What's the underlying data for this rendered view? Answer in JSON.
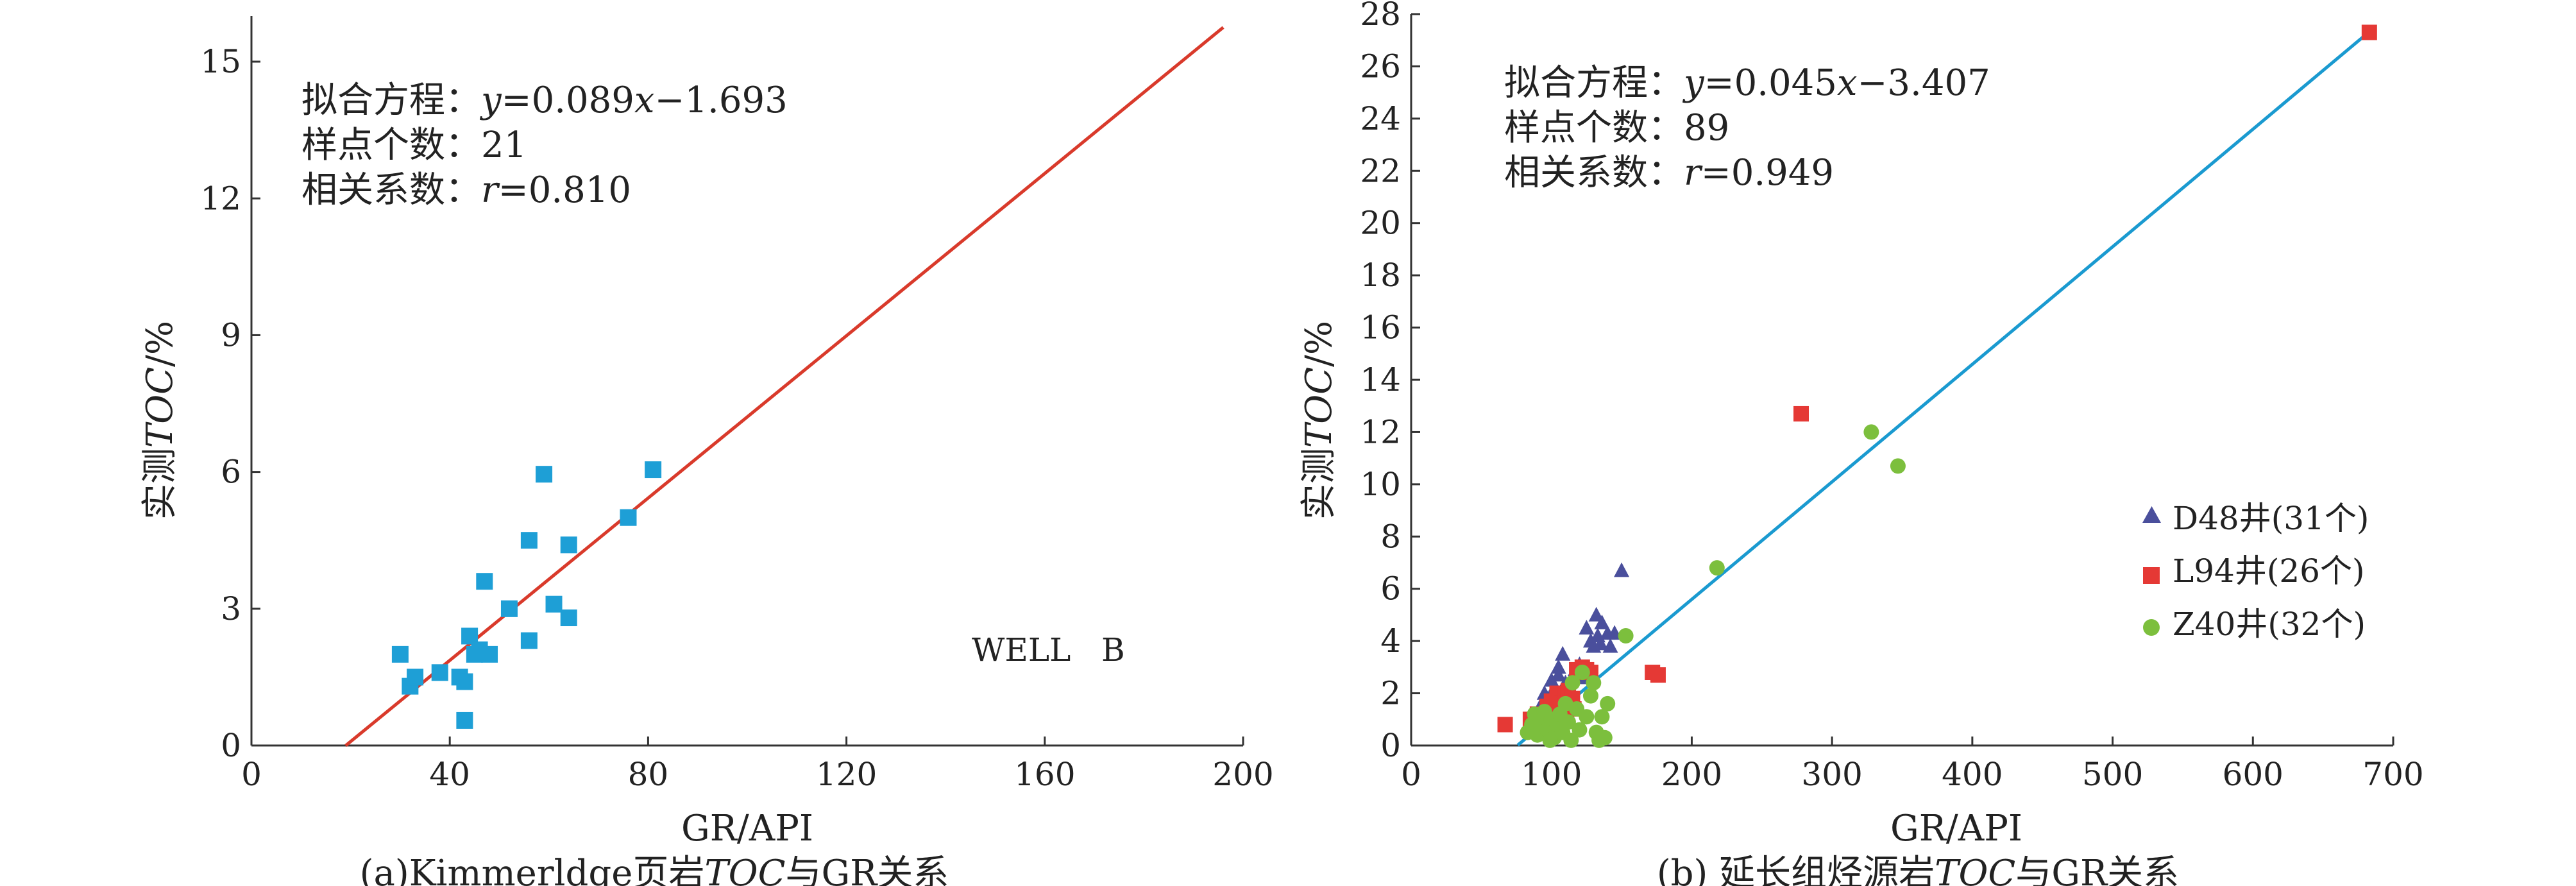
{
  "chart_data": [
    {
      "type": "scatter",
      "caption": {
        "prefix": "(a)Kimmerldge页岩",
        "italic": "TOC",
        "suffix": "与GR关系"
      },
      "xlabel": "GR/API",
      "ylabel": {
        "prefix": "实测",
        "italic": "TOC",
        "suffix": "/%"
      },
      "xlim": [
        0,
        200
      ],
      "ylim": [
        0,
        16
      ],
      "xticks": [
        0,
        40,
        80,
        120,
        160,
        200
      ],
      "yticks": [
        0,
        3,
        6,
        9,
        12,
        15
      ],
      "annotations": {
        "equation": {
          "label": "拟合方程：",
          "var_y": "y",
          "mid": "=0.089",
          "var_x": "x",
          "tail": "−1.693"
        },
        "count": {
          "label": "样点个数：",
          "value": "21"
        },
        "corr": {
          "label": "相关系数：",
          "var_r": "r",
          "value": "=0.810"
        }
      },
      "well_label": "WELL   B",
      "fit": {
        "slope": 0.089,
        "intercept": -1.693,
        "x_range": [
          19,
          196
        ],
        "color": "#d93a2b"
      },
      "series": [
        {
          "marker": "square",
          "color": "#1e9fd6",
          "points": [
            [
              30,
              2.0
            ],
            [
              32,
              1.3
            ],
            [
              33,
              1.5
            ],
            [
              38,
              1.6
            ],
            [
              42,
              1.5
            ],
            [
              43,
              1.4
            ],
            [
              43,
              0.55
            ],
            [
              44,
              2.4
            ],
            [
              45,
              2.0
            ],
            [
              46,
              2.1
            ],
            [
              48,
              2.0
            ],
            [
              47,
              3.6
            ],
            [
              52,
              3.0
            ],
            [
              56,
              4.5
            ],
            [
              56,
              2.3
            ],
            [
              59,
              5.95
            ],
            [
              61,
              3.1
            ],
            [
              64,
              4.4
            ],
            [
              64,
              2.8
            ],
            [
              76,
              5.0
            ],
            [
              81,
              6.05
            ]
          ]
        }
      ]
    },
    {
      "type": "scatter",
      "caption": {
        "prefix": "(b) 延长组烃源岩",
        "italic": "TOC",
        "suffix": "与GR关系"
      },
      "xlabel": "GR/API",
      "ylabel": {
        "prefix": "实测",
        "italic": "TOC",
        "suffix": "/%"
      },
      "xlim": [
        0,
        700
      ],
      "ylim": [
        0,
        28
      ],
      "xticks": [
        0,
        100,
        200,
        300,
        400,
        500,
        600,
        700
      ],
      "yticks": [
        0,
        2,
        4,
        6,
        8,
        10,
        12,
        14,
        16,
        18,
        20,
        22,
        24,
        26,
        28
      ],
      "annotations": {
        "equation": {
          "label": "拟合方程：",
          "var_y": "y",
          "mid": "=0.045",
          "var_x": "x",
          "tail": "−3.407"
        },
        "count": {
          "label": "样点个数：",
          "value": "89"
        },
        "corr": {
          "label": "相关系数：",
          "var_r": "r",
          "value": "=0.949"
        }
      },
      "fit": {
        "slope": 0.045,
        "intercept": -3.407,
        "x_range": [
          76,
          685
        ],
        "color": "#1a9ad0"
      },
      "legend_position": "right",
      "series": [
        {
          "name": "D48井(31个)",
          "marker": "triangle",
          "color": "#4a4f9c",
          "points": [
            [
              88,
              1.0
            ],
            [
              92,
              1.5
            ],
            [
              95,
              2.0
            ],
            [
              97,
              1.8
            ],
            [
              100,
              2.5
            ],
            [
              102,
              2.2
            ],
            [
              105,
              3.0
            ],
            [
              105,
              2.7
            ],
            [
              108,
              3.5
            ],
            [
              110,
              2.4
            ],
            [
              112,
              2.0
            ],
            [
              114,
              1.7
            ],
            [
              117,
              2.9
            ],
            [
              120,
              3.1
            ],
            [
              122,
              2.6
            ],
            [
              125,
              4.5
            ],
            [
              128,
              4.0
            ],
            [
              130,
              3.8
            ],
            [
              132,
              5.0
            ],
            [
              133,
              4.2
            ],
            [
              135,
              3.9
            ],
            [
              136,
              4.7
            ],
            [
              140,
              4.3
            ],
            [
              142,
              3.8
            ],
            [
              145,
              4.3
            ],
            [
              150,
              6.7
            ],
            [
              96,
              0.9
            ],
            [
              100,
              1.3
            ],
            [
              103,
              1.6
            ],
            [
              107,
              1.1
            ],
            [
              111,
              1.4
            ]
          ]
        },
        {
          "name": "L94井(26个)",
          "marker": "square",
          "color": "#e53935",
          "points": [
            [
              67,
              0.8
            ],
            [
              85,
              1.0
            ],
            [
              88,
              0.7
            ],
            [
              90,
              1.2
            ],
            [
              94,
              0.9
            ],
            [
              97,
              1.5
            ],
            [
              100,
              1.7
            ],
            [
              102,
              1.4
            ],
            [
              104,
              2.0
            ],
            [
              105,
              1.3
            ],
            [
              107,
              1.6
            ],
            [
              110,
              1.9
            ],
            [
              112,
              2.1
            ],
            [
              114,
              1.5
            ],
            [
              115,
              1.8
            ],
            [
              116,
              1.4
            ],
            [
              118,
              2.9
            ],
            [
              120,
              2.8
            ],
            [
              122,
              3.0
            ],
            [
              125,
              2.9
            ],
            [
              128,
              2.8
            ],
            [
              172,
              2.8
            ],
            [
              176,
              2.7
            ],
            [
              278,
              12.7
            ],
            [
              95,
              1.1
            ],
            [
              683,
              27.3
            ]
          ]
        },
        {
          "name": "Z40井(32个)",
          "marker": "circle",
          "color": "#7cbf3d",
          "points": [
            [
              83,
              0.5
            ],
            [
              86,
              0.8
            ],
            [
              88,
              1.2
            ],
            [
              90,
              0.4
            ],
            [
              92,
              0.9
            ],
            [
              95,
              1.3
            ],
            [
              97,
              0.6
            ],
            [
              100,
              1.0
            ],
            [
              102,
              0.3
            ],
            [
              104,
              0.8
            ],
            [
              106,
              1.2
            ],
            [
              108,
              0.5
            ],
            [
              110,
              1.6
            ],
            [
              112,
              0.9
            ],
            [
              114,
              0.2
            ],
            [
              115,
              2.4
            ],
            [
              118,
              1.4
            ],
            [
              120,
              0.6
            ],
            [
              122,
              2.8
            ],
            [
              125,
              1.1
            ],
            [
              128,
              1.9
            ],
            [
              130,
              2.4
            ],
            [
              132,
              0.5
            ],
            [
              134,
              0.2
            ],
            [
              136,
              1.1
            ],
            [
              138,
              0.3
            ],
            [
              140,
              1.6
            ],
            [
              153,
              4.2
            ],
            [
              218,
              6.8
            ],
            [
              328,
              12.0
            ],
            [
              347,
              10.7
            ],
            [
              99,
              0.2
            ]
          ]
        }
      ]
    }
  ]
}
